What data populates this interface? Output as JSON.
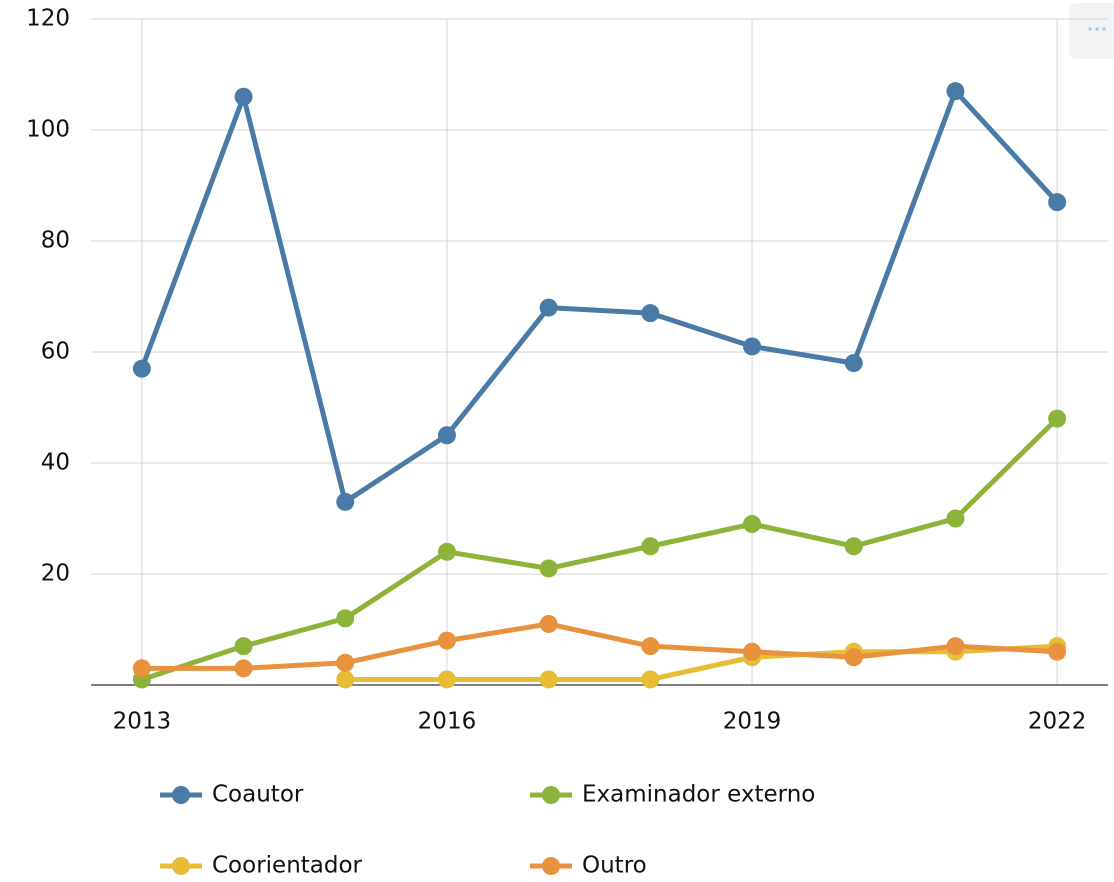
{
  "chart_data": {
    "type": "line",
    "x": [
      2013,
      2014,
      2015,
      2016,
      2017,
      2018,
      2019,
      2020,
      2021,
      2022
    ],
    "series": [
      {
        "name": "Coautor",
        "color": "#4a7ba6",
        "values": [
          57,
          106,
          33,
          45,
          68,
          67,
          61,
          58,
          107,
          87
        ]
      },
      {
        "name": "Examinador externo",
        "color": "#8db33a",
        "values": [
          1,
          7,
          12,
          24,
          21,
          25,
          29,
          25,
          30,
          48
        ]
      },
      {
        "name": "Coorientador",
        "color": "#e6bd35",
        "values": [
          null,
          null,
          1,
          1,
          1,
          1,
          5,
          6,
          6,
          7
        ]
      },
      {
        "name": "Outro",
        "color": "#e8923e",
        "values": [
          3,
          3,
          4,
          8,
          11,
          7,
          6,
          5,
          7,
          6
        ]
      }
    ],
    "xlim": [
      2012.5,
      2022.5
    ],
    "xticks": [
      2013,
      2016,
      2019,
      2022
    ],
    "ylim": [
      0,
      120
    ],
    "yticks": [
      20,
      40,
      60,
      80,
      100,
      120
    ],
    "grid": true,
    "legend": "bottom"
  }
}
